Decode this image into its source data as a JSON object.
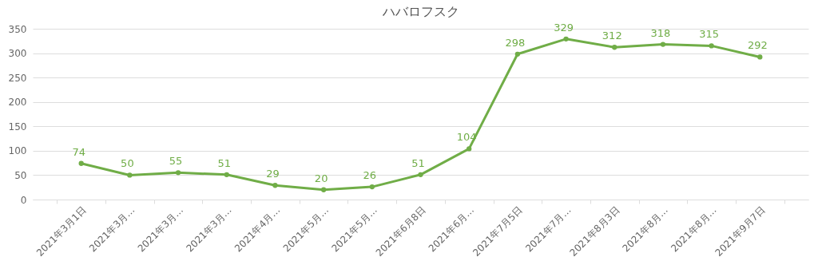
{
  "chart_data": {
    "type": "line",
    "title": "ハバロフスク",
    "categories": [
      "2021年3月1日",
      "2021年3月…",
      "2021年3月…",
      "2021年3月…",
      "2021年4月…",
      "2021年5月…",
      "2021年5月…",
      "2021年6月8日",
      "2021年6月…",
      "2021年7月5日",
      "2021年7月…",
      "2021年8月3日",
      "2021年8月…",
      "2021年8月…",
      "2021年9月7日"
    ],
    "series": [
      {
        "color": "#70ad47",
        "values": [
          74,
          50,
          55,
          51,
          29,
          20,
          26,
          51,
          104,
          298,
          329,
          312,
          318,
          315,
          292
        ]
      }
    ],
    "ylim": [
      0,
      350
    ],
    "yticks": [
      0,
      50,
      100,
      150,
      200,
      250,
      300,
      350
    ],
    "grid": "y",
    "data_labels": true,
    "marker": "circle"
  }
}
